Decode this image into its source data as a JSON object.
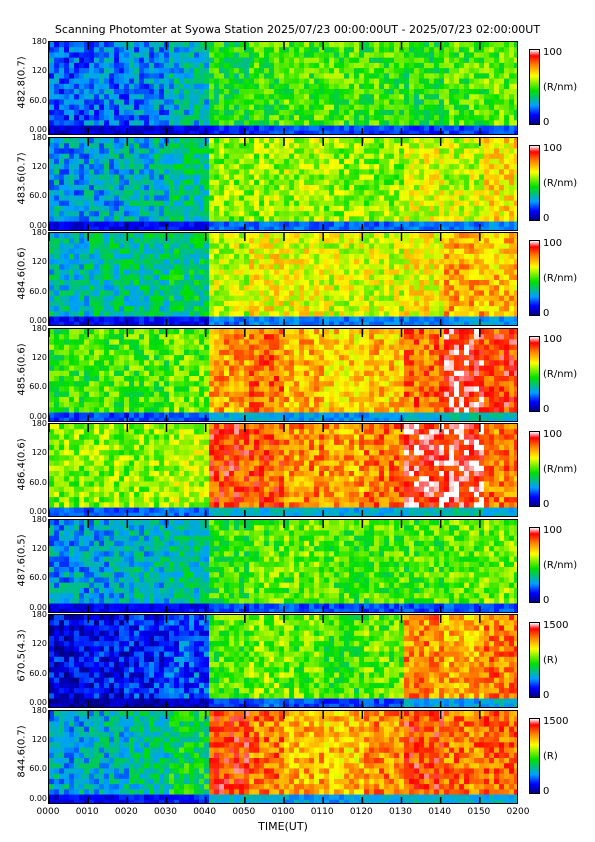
{
  "chart_data": {
    "type": "heatmap",
    "title": "Scanning Photomter at Syowa Station 2025/07/23 00:00:00UT - 2025/07/23 02:00:00UT",
    "xlabel": "TIME(UT)",
    "x_ticks": [
      "0000",
      "0010",
      "0020",
      "0030",
      "0040",
      "0050",
      "0100",
      "0110",
      "0120",
      "0130",
      "0140",
      "0150",
      "0200"
    ],
    "y_ticks": [
      "180",
      "120",
      "60.0",
      "0.00"
    ],
    "ylim": [
      0,
      180
    ],
    "colorscale": [
      "#000080",
      "#0000ff",
      "#00a0ff",
      "#00e000",
      "#ffff00",
      "#ff8000",
      "#ff0000",
      "#ffffff"
    ],
    "panels": [
      {
        "ylabel": "482.8(0.7)",
        "cb_max": "100",
        "cb_min": "0",
        "cb_unit": "(R/nm)",
        "intensity": [
          0.2,
          0.22,
          0.24,
          0.3,
          0.45,
          0.48,
          0.5,
          0.5,
          0.48,
          0.46,
          0.5,
          0.52
        ]
      },
      {
        "ylabel": "483.6(0.7)",
        "cb_max": "100",
        "cb_min": "0",
        "cb_unit": "(R/nm)",
        "intensity": [
          0.26,
          0.28,
          0.3,
          0.34,
          0.55,
          0.56,
          0.58,
          0.56,
          0.55,
          0.62,
          0.6,
          0.68
        ]
      },
      {
        "ylabel": "484.6(0.6)",
        "cb_max": "100",
        "cb_min": "0",
        "cb_unit": "(R/nm)",
        "intensity": [
          0.32,
          0.34,
          0.35,
          0.38,
          0.6,
          0.66,
          0.64,
          0.62,
          0.62,
          0.66,
          0.74,
          0.72
        ]
      },
      {
        "ylabel": "485.6(0.6)",
        "cb_max": "100",
        "cb_min": "0",
        "cb_unit": "(R/nm)",
        "intensity": [
          0.48,
          0.5,
          0.5,
          0.52,
          0.76,
          0.82,
          0.74,
          0.7,
          0.72,
          0.82,
          0.92,
          0.86
        ]
      },
      {
        "ylabel": "486.4(0.6)",
        "cb_max": "100",
        "cb_min": "0",
        "cb_unit": "(R/nm)",
        "intensity": [
          0.54,
          0.55,
          0.56,
          0.58,
          0.86,
          0.84,
          0.78,
          0.76,
          0.8,
          0.92,
          0.94,
          0.8
        ]
      },
      {
        "ylabel": "487.6(0.5)",
        "cb_max": "100",
        "cb_min": "0",
        "cb_unit": "(R/nm)",
        "intensity": [
          0.26,
          0.28,
          0.3,
          0.34,
          0.48,
          0.52,
          0.52,
          0.5,
          0.5,
          0.5,
          0.52,
          0.54
        ]
      },
      {
        "ylabel": "670.5(4.3)",
        "cb_max": "1500",
        "cb_min": "0",
        "cb_unit": "(R)",
        "intensity": [
          0.1,
          0.12,
          0.14,
          0.18,
          0.5,
          0.55,
          0.52,
          0.48,
          0.52,
          0.78,
          0.74,
          0.8
        ]
      },
      {
        "ylabel": "844.6(0.7)",
        "cb_max": "1500",
        "cb_min": "0",
        "cb_unit": "(R)",
        "intensity": [
          0.28,
          0.3,
          0.34,
          0.42,
          0.86,
          0.8,
          0.74,
          0.72,
          0.78,
          0.86,
          0.8,
          0.82
        ]
      }
    ]
  }
}
